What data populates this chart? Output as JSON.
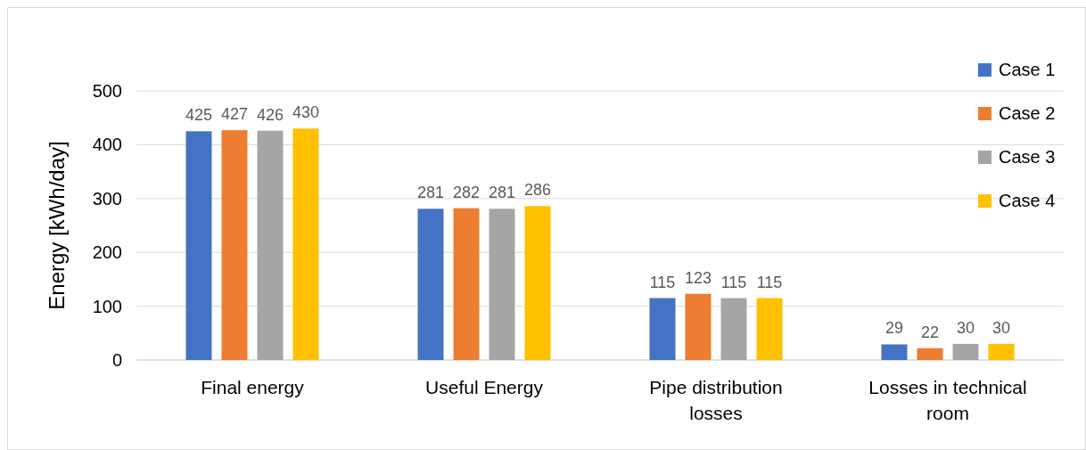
{
  "chart_data": {
    "type": "bar",
    "ylabel": "Energy [kWh/day]",
    "categories": [
      "Final energy",
      "Useful Energy",
      "Pipe distribution losses",
      "Losses in technical room"
    ],
    "series": [
      {
        "name": "Case 1",
        "color": "#4472c4",
        "values": [
          425,
          281,
          115,
          29
        ]
      },
      {
        "name": "Case 2",
        "color": "#ed7d31",
        "values": [
          427,
          282,
          123,
          22
        ]
      },
      {
        "name": "Case 3",
        "color": "#a5a5a5",
        "values": [
          426,
          281,
          115,
          30
        ]
      },
      {
        "name": "Case 4",
        "color": "#ffc000",
        "values": [
          430,
          286,
          115,
          30
        ]
      }
    ],
    "ylim": [
      0,
      500
    ],
    "yticks": [
      0,
      100,
      200,
      300,
      400,
      500
    ],
    "grid": "y",
    "legend": "right",
    "data_labels": true
  }
}
